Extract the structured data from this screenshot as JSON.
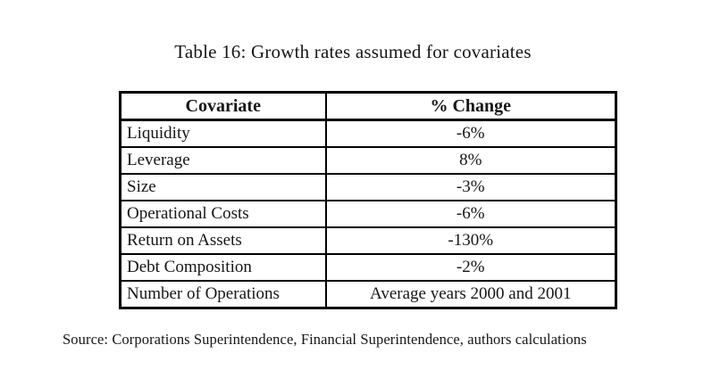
{
  "title": "Table 16: Growth rates assumed for covariates",
  "table": {
    "columns": [
      "Covariate",
      "% Change"
    ],
    "rows": [
      [
        "Liquidity",
        "-6%"
      ],
      [
        "Leverage",
        "8%"
      ],
      [
        "Size",
        "-3%"
      ],
      [
        "Operational Costs",
        "-6%"
      ],
      [
        "Return on Assets",
        "-130%"
      ],
      [
        "Debt Composition",
        "-2%"
      ],
      [
        "Number of Operations",
        "Average years 2000 and 2001"
      ]
    ]
  },
  "source_note": "Source: Corporations Superintendence, Financial Superintendence, authors calculations",
  "colors": {
    "background": "#ffffff",
    "text": "#161616",
    "border": "#000000"
  }
}
